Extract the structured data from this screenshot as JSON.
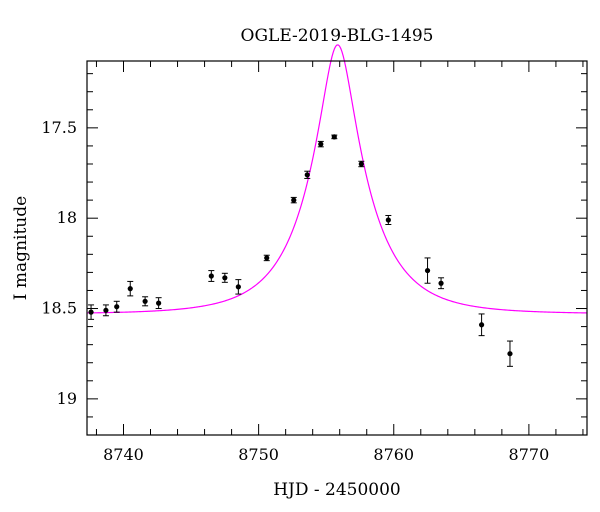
{
  "chart_data": {
    "type": "scatter",
    "title": "OGLE-2019-BLG-1495",
    "xlabel": "HJD - 2450000",
    "ylabel": "I magnitude",
    "xlim": [
      8737.3,
      8774.3
    ],
    "ylim": [
      19.2,
      17.13
    ],
    "y_inverted": true,
    "x_ticks_major": [
      8740,
      8750,
      8760,
      8770
    ],
    "x_tick_labels": [
      "8740",
      "8750",
      "8760",
      "8770"
    ],
    "y_ticks_major": [
      17.5,
      18,
      18.5,
      19
    ],
    "y_tick_labels": [
      "17.5",
      "18",
      "18.5",
      "19"
    ],
    "grid": false,
    "series": [
      {
        "kind": "points_with_errorbars",
        "color": "#000000",
        "points": [
          {
            "x": 8737.6,
            "y": 18.52,
            "err": 0.04
          },
          {
            "x": 8738.7,
            "y": 18.51,
            "err": 0.03
          },
          {
            "x": 8739.5,
            "y": 18.49,
            "err": 0.03
          },
          {
            "x": 8740.5,
            "y": 18.39,
            "err": 0.04
          },
          {
            "x": 8741.6,
            "y": 18.46,
            "err": 0.025
          },
          {
            "x": 8742.6,
            "y": 18.47,
            "err": 0.03
          },
          {
            "x": 8746.5,
            "y": 18.32,
            "err": 0.03
          },
          {
            "x": 8747.5,
            "y": 18.33,
            "err": 0.025
          },
          {
            "x": 8748.5,
            "y": 18.38,
            "err": 0.04
          },
          {
            "x": 8750.6,
            "y": 18.22,
            "err": 0.015
          },
          {
            "x": 8752.6,
            "y": 17.9,
            "err": 0.015
          },
          {
            "x": 8753.6,
            "y": 17.76,
            "err": 0.02
          },
          {
            "x": 8754.6,
            "y": 17.59,
            "err": 0.015
          },
          {
            "x": 8755.6,
            "y": 17.55,
            "err": 0.01
          },
          {
            "x": 8757.6,
            "y": 17.7,
            "err": 0.015
          },
          {
            "x": 8759.6,
            "y": 18.01,
            "err": 0.025
          },
          {
            "x": 8762.5,
            "y": 18.29,
            "err": 0.07
          },
          {
            "x": 8763.5,
            "y": 18.36,
            "err": 0.03
          },
          {
            "x": 8766.5,
            "y": 18.59,
            "err": 0.06
          },
          {
            "x": 8768.6,
            "y": 18.75,
            "err": 0.07
          }
        ]
      },
      {
        "kind": "model_curve",
        "color": "#ff00ff",
        "model": {
          "t0": 8755.85,
          "tE": 4.4,
          "u0": 0.26,
          "I_base": 18.53
        }
      }
    ]
  }
}
